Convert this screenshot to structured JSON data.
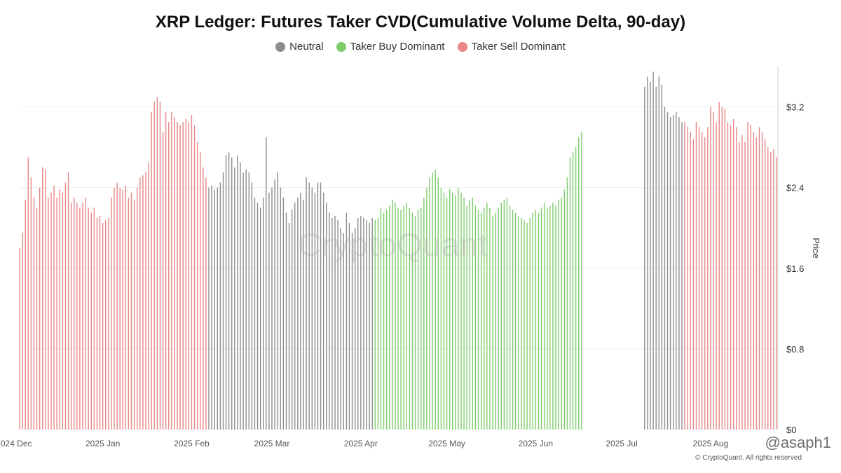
{
  "title": "XRP Ledger: Futures Taker CVD(Cumulative Volume Delta, 90-day)",
  "legend": [
    {
      "label": "Neutral",
      "color": "#8c8c8c"
    },
    {
      "label": "Taker Buy Dominant",
      "color": "#7fcc6c"
    },
    {
      "label": "Taker Sell Dominant",
      "color": "#e88686"
    }
  ],
  "watermark": "CryptoQuant",
  "credit": "© CryptoQuant. All rights reserved",
  "handle": "@asaph1",
  "chart_data": {
    "type": "bar",
    "title": "XRP Ledger: Futures Taker CVD(Cumulative Volume Delta, 90-day)",
    "xlabel": "",
    "ylabel": "Price",
    "ylim": [
      0,
      3.6
    ],
    "yticks": [
      {
        "value": 0,
        "label": "$0"
      },
      {
        "value": 0.8,
        "label": "$0.8"
      },
      {
        "value": 1.6,
        "label": "$1.6"
      },
      {
        "value": 2.4,
        "label": "$2.4"
      },
      {
        "value": 3.2,
        "label": "$3.2"
      }
    ],
    "xticks": [
      {
        "date": "2024-12-01",
        "label": "2024 Dec"
      },
      {
        "date": "2025-01-01",
        "label": "2025 Jan"
      },
      {
        "date": "2025-02-01",
        "label": "2025 Feb"
      },
      {
        "date": "2025-03-01",
        "label": "2025 Mar"
      },
      {
        "date": "2025-04-01",
        "label": "2025 Apr"
      },
      {
        "date": "2025-05-01",
        "label": "2025 May"
      },
      {
        "date": "2025-06-01",
        "label": "2025 Jun"
      },
      {
        "date": "2025-07-01",
        "label": "2025 Jul"
      },
      {
        "date": "2025-08-01",
        "label": "2025 Aug"
      }
    ],
    "grid": true,
    "legend_position": "top",
    "x_range": [
      "2024-12-03",
      "2025-08-24"
    ],
    "series": [
      {
        "name": "Taker Sell Dominant",
        "color": "#e88686",
        "segments": [
          {
            "start": "2024-12-03",
            "values": [
              1.8,
              1.95,
              2.28,
              2.7,
              2.5,
              2.3,
              2.2,
              2.4,
              2.6,
              2.58,
              2.3,
              2.35,
              2.42,
              2.3,
              2.38,
              2.35,
              2.45,
              2.55,
              2.25,
              2.3,
              2.25,
              2.2,
              2.25,
              2.3,
              2.2,
              2.15,
              2.2,
              2.1,
              2.12,
              2.05,
              2.08,
              2.1,
              2.3,
              2.4,
              2.45,
              2.4,
              2.38,
              2.42,
              2.3,
              2.35,
              2.28,
              2.4,
              2.5,
              2.52,
              2.55,
              2.65,
              3.15,
              3.25,
              3.3,
              3.25,
              2.95,
              3.15,
              3.05,
              3.15,
              3.1,
              3.05,
              3.02,
              3.05,
              3.08,
              3.05,
              3.12,
              3.02,
              2.85,
              2.75,
              2.6,
              2.5
            ]
          }
        ]
      },
      {
        "name": "Neutral",
        "color": "#8c8c8c",
        "segments": [
          {
            "start": "2025-02-07",
            "values": [
              2.4,
              2.42,
              2.38,
              2.4,
              2.45,
              2.55,
              2.72,
              2.75,
              2.7,
              2.6,
              2.72,
              2.65,
              2.55,
              2.58,
              2.55,
              2.45,
              2.3,
              2.25,
              2.2,
              2.3,
              2.9,
              2.35,
              2.4,
              2.48,
              2.55,
              2.4,
              2.3,
              2.15,
              2.05,
              2.18,
              2.25,
              2.3,
              2.35,
              2.28,
              2.5,
              2.45,
              2.4,
              2.35,
              2.45,
              2.45,
              2.35,
              2.25,
              2.15,
              2.1,
              2.12,
              2.08,
              2.0,
              1.95,
              2.15,
              2.05,
              1.95,
              2.0,
              2.1,
              2.12,
              2.1,
              2.08,
              2.05,
              2.1
            ]
          },
          {
            "start": "2025-07-09",
            "values": [
              3.4,
              3.5,
              3.45,
              3.55,
              3.4,
              3.5,
              3.42,
              3.2,
              3.15,
              3.1,
              3.12,
              3.15,
              3.1,
              3.05
            ]
          }
        ]
      },
      {
        "name": "Taker Buy Dominant",
        "color": "#7fcc6c",
        "segments": [
          {
            "start": "2025-04-06",
            "values": [
              2.08,
              2.1,
              2.2,
              2.15,
              2.18,
              2.22,
              2.28,
              2.25,
              2.2,
              2.18,
              2.22,
              2.25,
              2.2,
              2.15,
              2.12,
              2.18,
              2.2,
              2.3,
              2.4,
              2.5,
              2.55,
              2.58,
              2.5,
              2.4,
              2.35,
              2.3,
              2.38,
              2.35,
              2.32,
              2.4,
              2.35,
              2.3,
              2.22,
              2.28,
              2.3,
              2.22,
              2.18,
              2.15,
              2.2,
              2.25,
              2.2,
              2.12,
              2.15,
              2.2,
              2.25,
              2.28,
              2.3,
              2.22,
              2.18,
              2.15,
              2.12,
              2.1,
              2.08,
              2.05,
              2.1,
              2.15,
              2.18,
              2.15,
              2.2,
              2.25,
              2.2,
              2.22,
              2.25,
              2.22,
              2.28,
              2.3,
              2.38,
              2.5,
              2.7,
              2.75,
              2.8,
              2.9,
              2.95
            ]
          }
        ]
      },
      {
        "name": "Taker Sell Dominant",
        "color": "#e88686",
        "segments": [
          {
            "start": "2025-07-23",
            "values": [
              3.05,
              3.0,
              2.95,
              2.88,
              3.05,
              3.0,
              2.95,
              2.9,
              3.0,
              3.2,
              3.15,
              3.05,
              3.25,
              3.2,
              3.18,
              3.05,
              3.02,
              3.08,
              3.0,
              2.85,
              2.92,
              2.85,
              3.05,
              3.02,
              2.95,
              2.9,
              3.0,
              2.95,
              2.88,
              2.8,
              2.75,
              2.78,
              2.7
            ]
          }
        ]
      }
    ]
  }
}
